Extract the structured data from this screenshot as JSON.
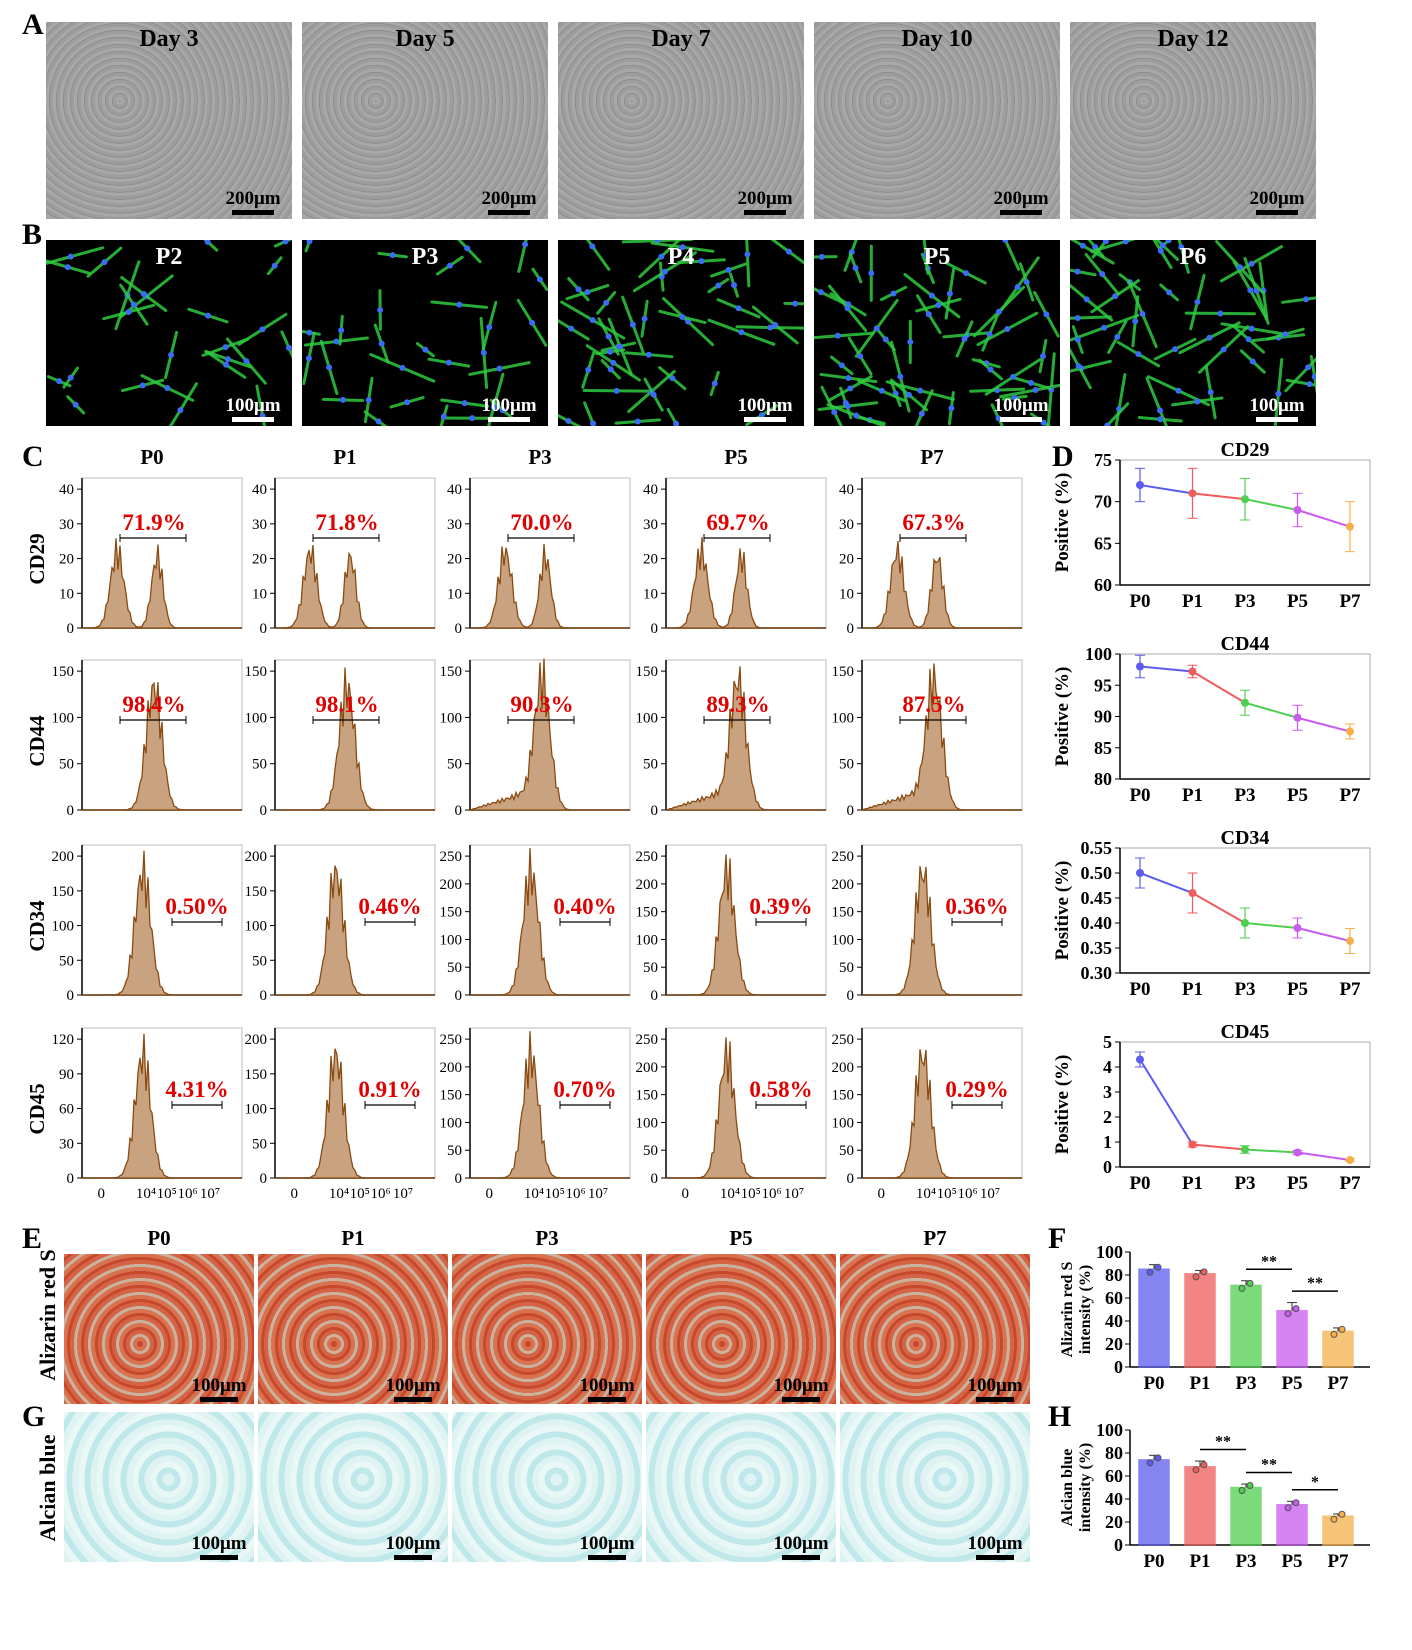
{
  "panels": {
    "A": "A",
    "B": "B",
    "C": "C",
    "D": "D",
    "E": "E",
    "F": "F",
    "G": "G",
    "H": "H"
  },
  "rowA": {
    "titles": [
      "Day 3",
      "Day 5",
      "Day 7",
      "Day 10",
      "Day 12"
    ],
    "scale": "200μm"
  },
  "rowB": {
    "titles": [
      "P2",
      "P3",
      "P4",
      "P5",
      "P6"
    ],
    "scale": "100μm"
  },
  "flow": {
    "columns": [
      "P0",
      "P1",
      "P3",
      "P5",
      "P7"
    ],
    "markers": [
      "CD29",
      "CD44",
      "CD34",
      "CD45"
    ],
    "percentages": [
      [
        "71.9%",
        "71.8%",
        "70.0%",
        "69.7%",
        "67.3%"
      ],
      [
        "98.4%",
        "98.1%",
        "90.3%",
        "89.3%",
        "87.5%"
      ],
      [
        "0.50%",
        "0.46%",
        "0.40%",
        "0.39%",
        "0.36%"
      ],
      [
        "4.31%",
        "0.91%",
        "0.70%",
        "0.58%",
        "0.29%"
      ]
    ],
    "yticks": [
      [
        [
          "0",
          "10",
          "20",
          "30",
          "40"
        ],
        [
          "0",
          "10",
          "20",
          "30",
          "40"
        ],
        [
          "0",
          "10",
          "20",
          "30",
          "40"
        ],
        [
          "0",
          "10",
          "20",
          "30",
          "40"
        ],
        [
          "0",
          "10",
          "20",
          "30",
          "40"
        ]
      ],
      [
        [
          "0",
          "50",
          "100",
          "150"
        ],
        [
          "0",
          "50",
          "100",
          "150"
        ],
        [
          "0",
          "50",
          "100",
          "150"
        ],
        [
          "0",
          "50",
          "100",
          "150"
        ],
        [
          "0",
          "50",
          "100",
          "150"
        ]
      ],
      [
        [
          "0",
          "50",
          "100",
          "150",
          "200"
        ],
        [
          "0",
          "50",
          "100",
          "150",
          "200"
        ],
        [
          "0",
          "50",
          "100",
          "150",
          "200",
          "250"
        ],
        [
          "0",
          "50",
          "100",
          "150",
          "200",
          "250"
        ],
        [
          "0",
          "50",
          "100",
          "150",
          "200",
          "250"
        ]
      ],
      [
        [
          "0",
          "30",
          "60",
          "90",
          "120"
        ],
        [
          "0",
          "50",
          "100",
          "150",
          "200"
        ],
        [
          "0",
          "50",
          "100",
          "150",
          "200",
          "250"
        ],
        [
          "0",
          "50",
          "100",
          "150",
          "200",
          "250"
        ],
        [
          "0",
          "50",
          "100",
          "150",
          "200",
          "250"
        ]
      ]
    ],
    "xticks": [
      "0",
      "10⁴",
      "10⁵",
      "10⁶",
      "10⁷"
    ]
  },
  "rowE": {
    "row_label": "Alizarin red S",
    "columns": [
      "P0",
      "P1",
      "P3",
      "P5",
      "P7"
    ],
    "scale": "100μm"
  },
  "rowG": {
    "row_label": "Alcian blue",
    "scale": "100μm"
  },
  "chart_data": [
    {
      "type": "line",
      "title": "CD29",
      "ylabel": "Positive (%)",
      "categories": [
        "P0",
        "P1",
        "P3",
        "P5",
        "P7"
      ],
      "values": [
        72.0,
        71.0,
        70.3,
        69.0,
        67.0
      ],
      "errors": [
        2.0,
        3.0,
        2.5,
        2.0,
        3.0
      ],
      "ylim": [
        60,
        75
      ],
      "yticks": [
        "60",
        "65",
        "70",
        "75"
      ]
    },
    {
      "type": "line",
      "title": "CD44",
      "ylabel": "Positive (%)",
      "categories": [
        "P0",
        "P1",
        "P3",
        "P5",
        "P7"
      ],
      "values": [
        98.0,
        97.2,
        92.2,
        89.8,
        87.6
      ],
      "errors": [
        1.8,
        1.0,
        2.0,
        2.0,
        1.2
      ],
      "ylim": [
        80,
        100
      ],
      "yticks": [
        "80",
        "85",
        "90",
        "95",
        "100"
      ]
    },
    {
      "type": "line",
      "title": "CD34",
      "ylabel": "Positive (%)",
      "categories": [
        "P0",
        "P1",
        "P3",
        "P5",
        "P7"
      ],
      "values": [
        0.5,
        0.46,
        0.4,
        0.39,
        0.364
      ],
      "errors": [
        0.03,
        0.04,
        0.03,
        0.02,
        0.025
      ],
      "ylim": [
        0.3,
        0.55
      ],
      "yticks": [
        "0.30",
        "0.35",
        "0.40",
        "0.45",
        "0.50",
        "0.55"
      ]
    },
    {
      "type": "line",
      "title": "CD45",
      "ylabel": "Positive (%)",
      "categories": [
        "P0",
        "P1",
        "P3",
        "P5",
        "P7"
      ],
      "values": [
        4.3,
        0.9,
        0.7,
        0.58,
        0.28
      ],
      "errors": [
        0.3,
        0.1,
        0.15,
        0.08,
        0.05
      ],
      "ylim": [
        0,
        5
      ],
      "yticks": [
        "0",
        "1",
        "2",
        "3",
        "4",
        "5"
      ]
    },
    {
      "type": "bar",
      "ylabel": "Alizarin red S intensity (%)",
      "categories": [
        "P0",
        "P1",
        "P3",
        "P5",
        "P7"
      ],
      "values": [
        85,
        81,
        71,
        49,
        31
      ],
      "errors": [
        4,
        3,
        4,
        7,
        3
      ],
      "ylim": [
        0,
        100
      ],
      "yticks": [
        "0",
        "20",
        "40",
        "60",
        "80",
        "100"
      ],
      "significance": [
        {
          "from": "P3",
          "to": "P5",
          "label": "**"
        },
        {
          "from": "P5",
          "to": "P7",
          "label": "**"
        }
      ]
    },
    {
      "type": "bar",
      "ylabel": "Alcian blue intensity (%)",
      "categories": [
        "P0",
        "P1",
        "P3",
        "P5",
        "P7"
      ],
      "values": [
        74,
        68,
        50,
        35,
        25
      ],
      "errors": [
        4,
        5,
        3,
        3,
        2
      ],
      "ylim": [
        0,
        100
      ],
      "yticks": [
        "0",
        "20",
        "40",
        "60",
        "80",
        "100"
      ],
      "significance": [
        {
          "from": "P1",
          "to": "P3",
          "label": "**"
        },
        {
          "from": "P3",
          "to": "P5",
          "label": "**"
        },
        {
          "from": "P5",
          "to": "P7",
          "label": "*"
        }
      ]
    }
  ],
  "colors": {
    "series": [
      "#5b5bf0",
      "#f05b5b",
      "#4fcf4f",
      "#c95bf0",
      "#f5b04a"
    ],
    "percent": "#e00000",
    "histogram_fill": "#c9a37f",
    "histogram_stroke": "#8a4b12"
  }
}
